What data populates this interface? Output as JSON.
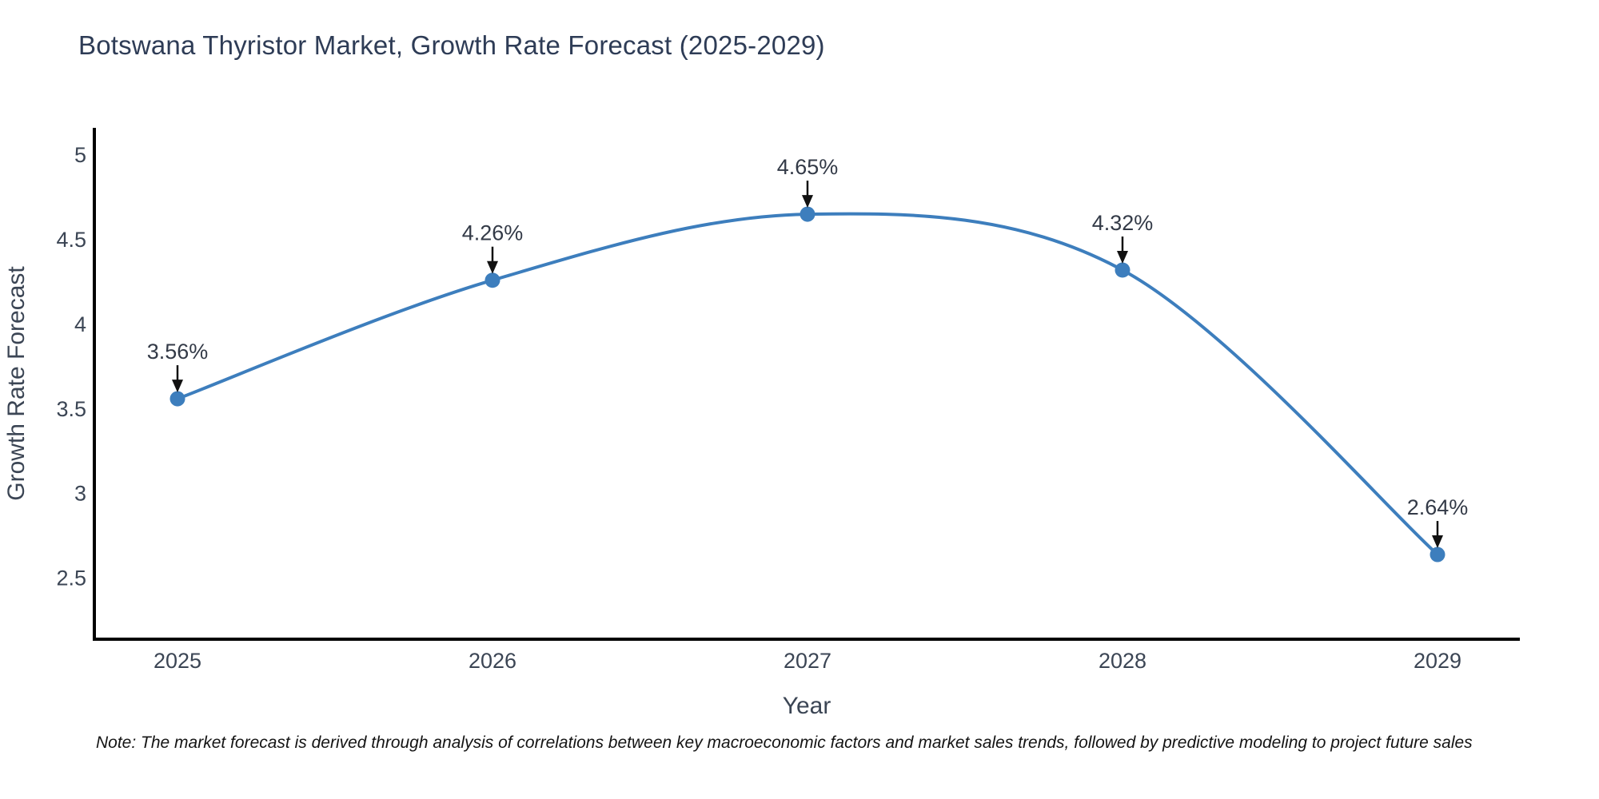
{
  "header": {
    "title": "Botswana Thyristor Market, Growth Rate Forecast (2025-2029)"
  },
  "chart_data": {
    "type": "line",
    "title": "Botswana Thyristor Market, Growth Rate Forecast (2025-2029)",
    "xlabel": "Year",
    "ylabel": "Growth Rate Forecast",
    "categories": [
      "2025",
      "2026",
      "2027",
      "2028",
      "2029"
    ],
    "values": [
      3.56,
      4.26,
      4.65,
      4.32,
      2.64
    ],
    "point_labels": [
      "3.56%",
      "4.26%",
      "4.65%",
      "4.32%",
      "2.64%"
    ],
    "yticks": [
      2.5,
      3,
      3.5,
      4,
      4.5,
      5
    ],
    "ytick_labels": [
      "2.5",
      "3",
      "3.5",
      "4",
      "4.5",
      "5"
    ],
    "ylim": [
      2.14,
      5.16
    ],
    "grid": false,
    "legend": "none",
    "curve": "spline",
    "line_color": "#3d7ebd",
    "marker_color": "#3d7ebd",
    "axis_color": "#000000",
    "tick_label_color": "#3b4554",
    "axis_title_color": "#3b4554",
    "annotation_text_color": "#333a47",
    "arrow_color": "#111111"
  },
  "note": {
    "text": "Note: The market forecast is derived through analysis of correlations between key macroeconomic factors and market sales trends, followed by predictive modeling to project future sales"
  }
}
